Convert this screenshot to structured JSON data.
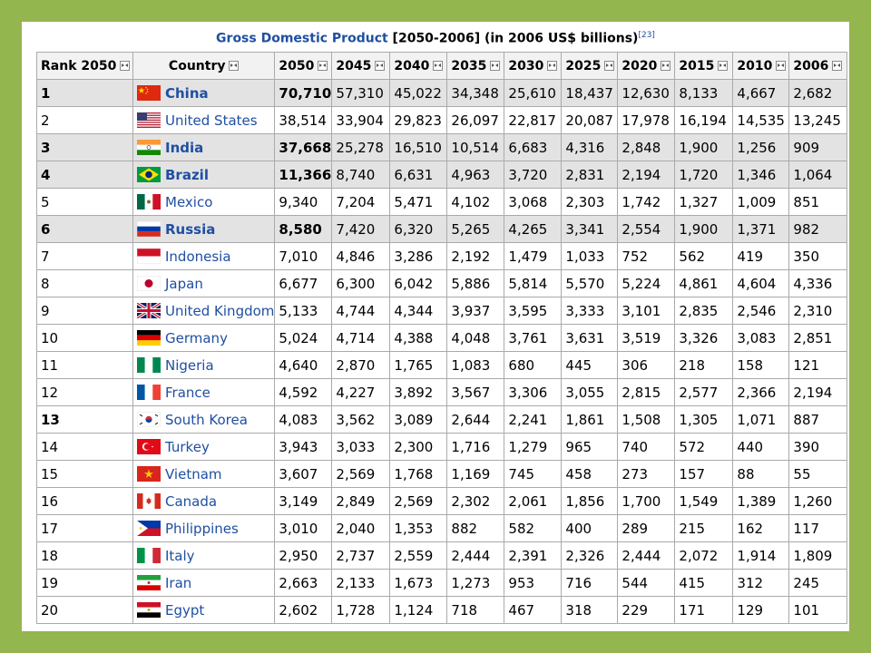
{
  "caption": {
    "title_link": "Gross Domestic Product",
    "title_rest": " [2050-2006] (in 2006 US$ billions)",
    "ref": "[23]"
  },
  "columns": [
    "Rank 2050",
    "Country",
    "2050",
    "2045",
    "2040",
    "2035",
    "2030",
    "2025",
    "2020",
    "2015",
    "2010",
    "2006"
  ],
  "rows": [
    {
      "rank": "1",
      "country": "China",
      "flag": "china-flag",
      "shaded": true,
      "bold": true,
      "values": [
        "70,710",
        "57,310",
        "45,022",
        "34,348",
        "25,610",
        "18,437",
        "12,630",
        "8,133",
        "4,667",
        "2,682"
      ]
    },
    {
      "rank": "2",
      "country": "United States",
      "flag": "usa-flag",
      "shaded": false,
      "bold": false,
      "values": [
        "38,514",
        "33,904",
        "29,823",
        "26,097",
        "22,817",
        "20,087",
        "17,978",
        "16,194",
        "14,535",
        "13,245"
      ]
    },
    {
      "rank": "3",
      "country": "India",
      "flag": "india-flag",
      "shaded": true,
      "bold": true,
      "values": [
        "37,668",
        "25,278",
        "16,510",
        "10,514",
        "6,683",
        "4,316",
        "2,848",
        "1,900",
        "1,256",
        "909"
      ]
    },
    {
      "rank": "4",
      "country": "Brazil",
      "flag": "brazil-flag",
      "shaded": true,
      "bold": true,
      "values": [
        "11,366",
        "8,740",
        "6,631",
        "4,963",
        "3,720",
        "2,831",
        "2,194",
        "1,720",
        "1,346",
        "1,064"
      ]
    },
    {
      "rank": "5",
      "country": "Mexico",
      "flag": "mexico-flag",
      "shaded": false,
      "bold": false,
      "values": [
        "9,340",
        "7,204",
        "5,471",
        "4,102",
        "3,068",
        "2,303",
        "1,742",
        "1,327",
        "1,009",
        "851"
      ]
    },
    {
      "rank": "6",
      "country": "Russia",
      "flag": "russia-flag",
      "shaded": true,
      "bold": true,
      "values": [
        "8,580",
        "7,420",
        "6,320",
        "5,265",
        "4,265",
        "3,341",
        "2,554",
        "1,900",
        "1,371",
        "982"
      ]
    },
    {
      "rank": "7",
      "country": "Indonesia",
      "flag": "indonesia-flag",
      "shaded": false,
      "bold": false,
      "values": [
        "7,010",
        "4,846",
        "3,286",
        "2,192",
        "1,479",
        "1,033",
        "752",
        "562",
        "419",
        "350"
      ]
    },
    {
      "rank": "8",
      "country": "Japan",
      "flag": "japan-flag",
      "shaded": false,
      "bold": false,
      "values": [
        "6,677",
        "6,300",
        "6,042",
        "5,886",
        "5,814",
        "5,570",
        "5,224",
        "4,861",
        "4,604",
        "4,336"
      ]
    },
    {
      "rank": "9",
      "country": "United Kingdom",
      "flag": "uk-flag",
      "shaded": false,
      "bold": false,
      "values": [
        "5,133",
        "4,744",
        "4,344",
        "3,937",
        "3,595",
        "3,333",
        "3,101",
        "2,835",
        "2,546",
        "2,310"
      ]
    },
    {
      "rank": "10",
      "country": "Germany",
      "flag": "germany-flag",
      "shaded": false,
      "bold": false,
      "values": [
        "5,024",
        "4,714",
        "4,388",
        "4,048",
        "3,761",
        "3,631",
        "3,519",
        "3,326",
        "3,083",
        "2,851"
      ]
    },
    {
      "rank": "11",
      "country": "Nigeria",
      "flag": "nigeria-flag",
      "shaded": false,
      "bold": false,
      "values": [
        "4,640",
        "2,870",
        "1,765",
        "1,083",
        "680",
        "445",
        "306",
        "218",
        "158",
        "121"
      ]
    },
    {
      "rank": "12",
      "country": "France",
      "flag": "france-flag",
      "shaded": false,
      "bold": false,
      "values": [
        "4,592",
        "4,227",
        "3,892",
        "3,567",
        "3,306",
        "3,055",
        "2,815",
        "2,577",
        "2,366",
        "2,194"
      ]
    },
    {
      "rank": "13",
      "country": "South Korea",
      "flag": "south-korea-flag",
      "shaded": false,
      "bold": false,
      "rankBold": true,
      "values": [
        "4,083",
        "3,562",
        "3,089",
        "2,644",
        "2,241",
        "1,861",
        "1,508",
        "1,305",
        "1,071",
        "887"
      ]
    },
    {
      "rank": "14",
      "country": "Turkey",
      "flag": "turkey-flag",
      "shaded": false,
      "bold": false,
      "values": [
        "3,943",
        "3,033",
        "2,300",
        "1,716",
        "1,279",
        "965",
        "740",
        "572",
        "440",
        "390"
      ]
    },
    {
      "rank": "15",
      "country": "Vietnam",
      "flag": "vietnam-flag",
      "shaded": false,
      "bold": false,
      "values": [
        "3,607",
        "2,569",
        "1,768",
        "1,169",
        "745",
        "458",
        "273",
        "157",
        "88",
        "55"
      ]
    },
    {
      "rank": "16",
      "country": "Canada",
      "flag": "canada-flag",
      "shaded": false,
      "bold": false,
      "values": [
        "3,149",
        "2,849",
        "2,569",
        "2,302",
        "2,061",
        "1,856",
        "1,700",
        "1,549",
        "1,389",
        "1,260"
      ]
    },
    {
      "rank": "17",
      "country": "Philippines",
      "flag": "philippines-flag",
      "shaded": false,
      "bold": false,
      "values": [
        "3,010",
        "2,040",
        "1,353",
        "882",
        "582",
        "400",
        "289",
        "215",
        "162",
        "117"
      ]
    },
    {
      "rank": "18",
      "country": "Italy",
      "flag": "italy-flag",
      "shaded": false,
      "bold": false,
      "values": [
        "2,950",
        "2,737",
        "2,559",
        "2,444",
        "2,391",
        "2,326",
        "2,444",
        "2,072",
        "1,914",
        "1,809"
      ]
    },
    {
      "rank": "19",
      "country": "Iran",
      "flag": "iran-flag",
      "shaded": false,
      "bold": false,
      "values": [
        "2,663",
        "2,133",
        "1,673",
        "1,273",
        "953",
        "716",
        "544",
        "415",
        "312",
        "245"
      ]
    },
    {
      "rank": "20",
      "country": "Egypt",
      "flag": "egypt-flag",
      "shaded": false,
      "bold": false,
      "values": [
        "2,602",
        "1,728",
        "1,124",
        "718",
        "467",
        "318",
        "229",
        "171",
        "129",
        "101"
      ]
    }
  ],
  "chart_data": {
    "type": "table",
    "title": "Gross Domestic Product [2050-2006] (in 2006 US$ billions)",
    "columns": [
      "Rank 2050",
      "Country",
      "2050",
      "2045",
      "2040",
      "2035",
      "2030",
      "2025",
      "2020",
      "2015",
      "2010",
      "2006"
    ],
    "rows": [
      [
        "1",
        "China",
        "70,710",
        "57,310",
        "45,022",
        "34,348",
        "25,610",
        "18,437",
        "12,630",
        "8,133",
        "4,667",
        "2,682"
      ],
      [
        "2",
        "United States",
        "38,514",
        "33,904",
        "29,823",
        "26,097",
        "22,817",
        "20,087",
        "17,978",
        "16,194",
        "14,535",
        "13,245"
      ],
      [
        "3",
        "India",
        "37,668",
        "25,278",
        "16,510",
        "10,514",
        "6,683",
        "4,316",
        "2,848",
        "1,900",
        "1,256",
        "909"
      ],
      [
        "4",
        "Brazil",
        "11,366",
        "8,740",
        "6,631",
        "4,963",
        "3,720",
        "2,831",
        "2,194",
        "1,720",
        "1,346",
        "1,064"
      ],
      [
        "5",
        "Mexico",
        "9,340",
        "7,204",
        "5,471",
        "4,102",
        "3,068",
        "2,303",
        "1,742",
        "1,327",
        "1,009",
        "851"
      ],
      [
        "6",
        "Russia",
        "8,580",
        "7,420",
        "6,320",
        "5,265",
        "4,265",
        "3,341",
        "2,554",
        "1,900",
        "1,371",
        "982"
      ],
      [
        "7",
        "Indonesia",
        "7,010",
        "4,846",
        "3,286",
        "2,192",
        "1,479",
        "1,033",
        "752",
        "562",
        "419",
        "350"
      ],
      [
        "8",
        "Japan",
        "6,677",
        "6,300",
        "6,042",
        "5,886",
        "5,814",
        "5,570",
        "5,224",
        "4,861",
        "4,604",
        "4,336"
      ],
      [
        "9",
        "United Kingdom",
        "5,133",
        "4,744",
        "4,344",
        "3,937",
        "3,595",
        "3,333",
        "3,101",
        "2,835",
        "2,546",
        "2,310"
      ],
      [
        "10",
        "Germany",
        "5,024",
        "4,714",
        "4,388",
        "4,048",
        "3,761",
        "3,631",
        "3,519",
        "3,326",
        "3,083",
        "2,851"
      ],
      [
        "11",
        "Nigeria",
        "4,640",
        "2,870",
        "1,765",
        "1,083",
        "680",
        "445",
        "306",
        "218",
        "158",
        "121"
      ],
      [
        "12",
        "France",
        "4,592",
        "4,227",
        "3,892",
        "3,567",
        "3,306",
        "3,055",
        "2,815",
        "2,577",
        "2,366",
        "2,194"
      ],
      [
        "13",
        "South Korea",
        "4,083",
        "3,562",
        "3,089",
        "2,644",
        "2,241",
        "1,861",
        "1,508",
        "1,305",
        "1,071",
        "887"
      ],
      [
        "14",
        "Turkey",
        "3,943",
        "3,033",
        "2,300",
        "1,716",
        "1,279",
        "965",
        "740",
        "572",
        "440",
        "390"
      ],
      [
        "15",
        "Vietnam",
        "3,607",
        "2,569",
        "1,768",
        "1,169",
        "745",
        "458",
        "273",
        "157",
        "88",
        "55"
      ],
      [
        "16",
        "Canada",
        "3,149",
        "2,849",
        "2,569",
        "2,302",
        "2,061",
        "1,856",
        "1,700",
        "1,549",
        "1,389",
        "1,260"
      ],
      [
        "17",
        "Philippines",
        "3,010",
        "2,040",
        "1,353",
        "882",
        "582",
        "400",
        "289",
        "215",
        "162",
        "117"
      ],
      [
        "18",
        "Italy",
        "2,950",
        "2,737",
        "2,559",
        "2,444",
        "2,391",
        "2,326",
        "2,444",
        "2,072",
        "1,914",
        "1,809"
      ],
      [
        "19",
        "Iran",
        "2,663",
        "2,133",
        "1,673",
        "1,273",
        "953",
        "716",
        "544",
        "415",
        "312",
        "245"
      ],
      [
        "20",
        "Egypt",
        "2,602",
        "1,728",
        "1,124",
        "718",
        "467",
        "318",
        "229",
        "171",
        "129",
        "101"
      ]
    ]
  }
}
